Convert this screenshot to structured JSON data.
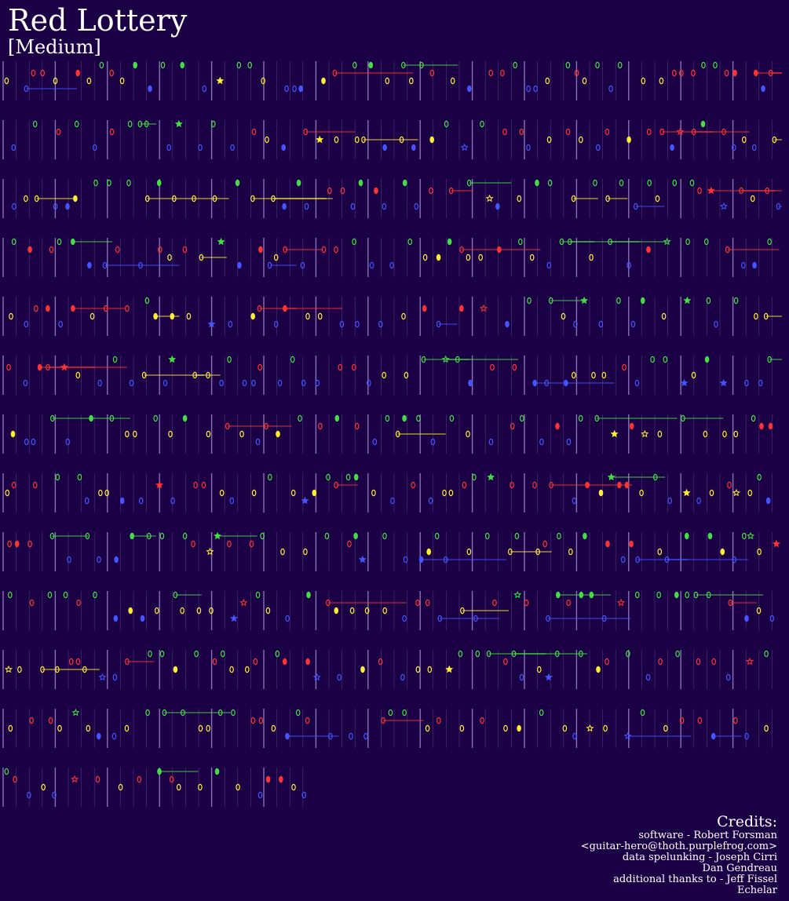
{
  "song": {
    "title": "Red Lottery",
    "difficulty": "[Medium]"
  },
  "credits": {
    "heading": "Credits:",
    "lines": [
      "software - Robert Forsman",
      "<guitar-hero@thoth.purplefrog.com>",
      "data spelunking - Joseph Cirri",
      "Dan Gendreau",
      "additional thanks to - Jeff Fissel",
      "Echelar"
    ]
  },
  "colors": {
    "background": "#1c0046",
    "green": "#44dd44",
    "red": "#ff3333",
    "yellow": "#ffee33",
    "blue": "#4455ff",
    "beat_line": "#9a86c8"
  },
  "chart_data": {
    "type": "note-chart",
    "lanes": [
      "green",
      "red",
      "yellow",
      "blue"
    ],
    "row_count": 13,
    "final_row_fraction": 0.4,
    "note_symbols": [
      "gem",
      "star-power"
    ]
  }
}
